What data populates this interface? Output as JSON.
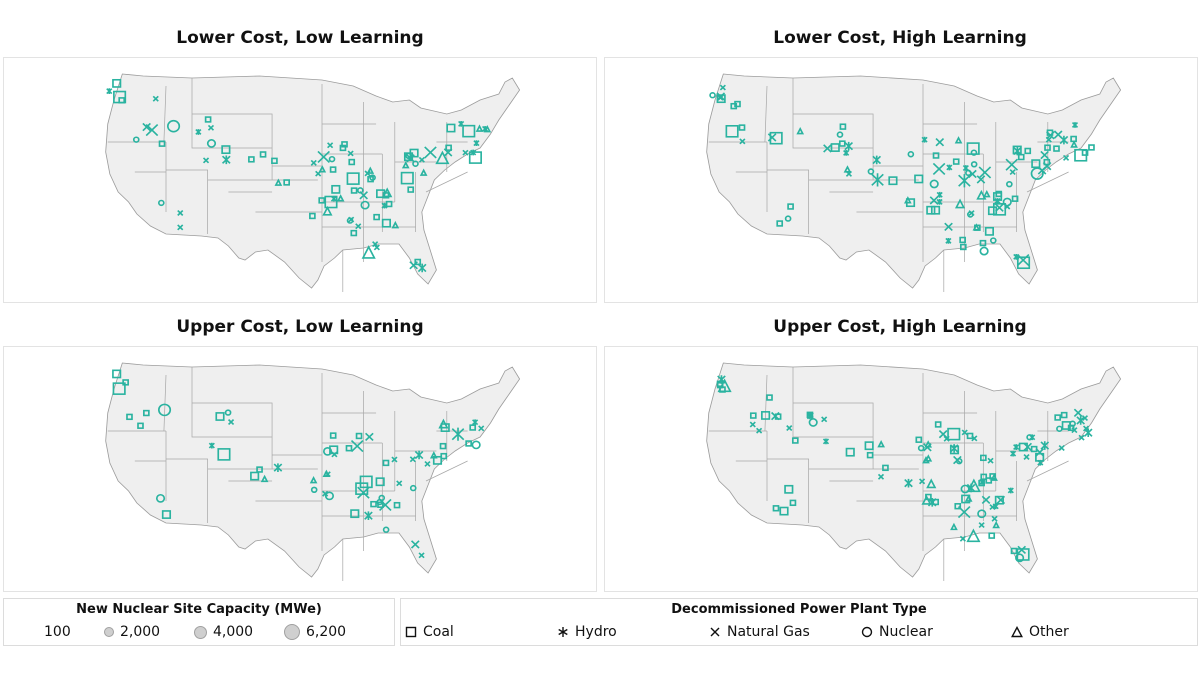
{
  "panels": [
    {
      "title": "Lower Cost, Low Learning",
      "density": 1.0,
      "seed": 11
    },
    {
      "title": "Lower Cost, High Learning",
      "density": 1.15,
      "seed": 23
    },
    {
      "title": "Upper Cost, Low Learning",
      "density": 0.7,
      "seed": 37
    },
    {
      "title": "Upper Cost, High Learning",
      "density": 1.2,
      "seed": 53
    }
  ],
  "legend": {
    "capacity_title": "New Nuclear Site Capacity (MWe)",
    "capacity_items": [
      "100",
      "2,000",
      "4,000",
      "6,200"
    ],
    "type_title": "Decommissioned Power Plant Type",
    "type_items": [
      {
        "label": "Coal",
        "icon": "square-icon"
      },
      {
        "label": "Hydro",
        "icon": "asterisk-icon"
      },
      {
        "label": "Natural Gas",
        "icon": "x-icon"
      },
      {
        "label": "Nuclear",
        "icon": "circle-icon"
      },
      {
        "label": "Other",
        "icon": "triangle-icon"
      }
    ]
  },
  "colors": {
    "marker": "#2ab3a0",
    "state_fill": "#efefef",
    "state_stroke": "#9c9c9c"
  }
}
